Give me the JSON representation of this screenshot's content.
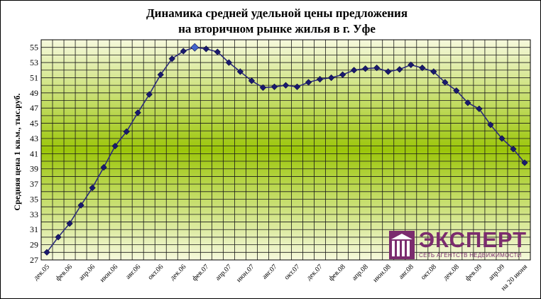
{
  "chart_data": {
    "type": "line",
    "title_line1": "Динамика средней удельной цены предложения",
    "title_line2": "на вторичном рынке жилья в г. Уфе",
    "ylabel": "Средняя цена 1 кв.м., тыс.руб.",
    "xlabel": "",
    "ylim": [
      27,
      56
    ],
    "yticks": [
      27,
      29,
      31,
      33,
      35,
      37,
      39,
      41,
      43,
      45,
      47,
      49,
      51,
      53,
      55
    ],
    "grid": true,
    "legend": "none",
    "colors": {
      "line": "#2b2b7a",
      "marker": "#1a1a6e",
      "highlight_marker": "#4466cc",
      "bg_top": "#f6f9dc",
      "bg_mid": "#9cc60a",
      "grid": "#1a1a1a"
    },
    "x_labels": [
      "дек.05",
      "фев.06",
      "апр.06",
      "июн.06",
      "авг.06",
      "окт.06",
      "дек.06",
      "фев.07",
      "апр.07",
      "июн.07",
      "авг.07",
      "окт.07",
      "дек.07",
      "фев.08",
      "апр.08",
      "июн.08",
      "авг.08",
      "окт.08",
      "дек.08",
      "фев.09",
      "апр.09",
      "на 20 июня"
    ],
    "series": [
      {
        "values": [
          28.0,
          30.0,
          31.8,
          34.2,
          36.5,
          39.2,
          42.0,
          43.9,
          46.4,
          48.8,
          51.4,
          53.5,
          54.5,
          55.0,
          54.8,
          54.4,
          53.0,
          51.8,
          50.6,
          49.7,
          49.8,
          50.0,
          49.8,
          50.4,
          50.8,
          51.0,
          51.4,
          52.0,
          52.2,
          52.3,
          51.8,
          52.1,
          52.7,
          52.3,
          51.8,
          50.4,
          49.3,
          47.7,
          46.9,
          44.8,
          43.0,
          41.6,
          39.8
        ],
        "highlight_index": 13
      }
    ]
  },
  "logo": {
    "name": "ЭКСПЕРТ",
    "tagline": "СЕТЬ АГЕНТСТВ НЕДВИЖИМОСТИ"
  }
}
